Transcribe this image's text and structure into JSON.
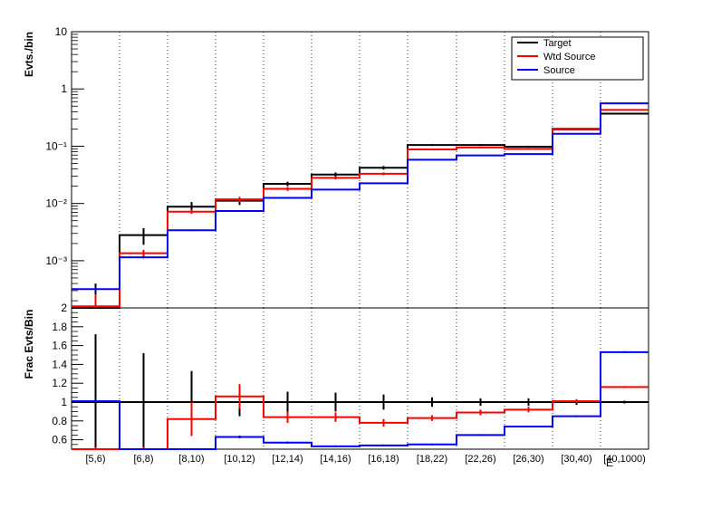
{
  "chart_data": [
    {
      "type": "step",
      "ylabel": "Evts./bin",
      "yscale": "log",
      "ylim": [
        0.00015,
        10
      ],
      "y_tick_labels": [
        "10",
        "1",
        "10⁻¹",
        "10⁻²",
        "10⁻³"
      ],
      "categories": [
        "[5,6)",
        "[6,8)",
        "[8,10)",
        "[10,12)",
        "[12,14)",
        "[14,16)",
        "[16,18)",
        "[18,22)",
        "[22,26)",
        "[26,30)",
        "[30,40)",
        "[40,1000)"
      ],
      "legend": {
        "position": "top-right",
        "entries": [
          "Target",
          "Wtd Source",
          "Source"
        ]
      },
      "series": [
        {
          "name": "Target",
          "color": "#000000",
          "values": [
            0.0001,
            0.0028,
            0.0088,
            0.0112,
            0.022,
            0.032,
            0.042,
            0.105,
            0.105,
            0.098,
            0.2,
            0.37
          ],
          "errors": [
            0.0003,
            0.0009,
            0.0018,
            0.0018,
            0.002,
            0.0028,
            0.003,
            0.004,
            0.004,
            0.004,
            0.005,
            0.006
          ]
        },
        {
          "name": "Wtd Source",
          "color": "#ff0000",
          "values": [
            0.00016,
            0.00135,
            0.0072,
            0.0118,
            0.018,
            0.028,
            0.033,
            0.088,
            0.095,
            0.09,
            0.195,
            0.43
          ],
          "errors": [
            0.0001,
            0.0002,
            0.0006,
            0.0012,
            0.0014,
            0.0018,
            0.0018,
            0.0025,
            0.0028,
            0.0028,
            0.004,
            0.005
          ]
        },
        {
          "name": "Source",
          "color": "#0000ff",
          "values": [
            0.00032,
            0.00115,
            0.0034,
            0.0074,
            0.0125,
            0.0175,
            0.0225,
            0.058,
            0.069,
            0.073,
            0.165,
            0.56
          ],
          "errors": [
            2e-05,
            5e-05,
            0.0001,
            0.0002,
            0.0003,
            0.0004,
            0.0004,
            0.0009,
            0.001,
            0.0011,
            0.002,
            0.003
          ]
        }
      ]
    },
    {
      "type": "step",
      "ylabel": "Frac Evts/Bin",
      "xlabel": "E",
      "ylim": [
        0.5,
        2
      ],
      "y_tick_labels": [
        "2",
        "1.8",
        "1.6",
        "1.4",
        "1.2",
        "1",
        "0.8",
        "0.6"
      ],
      "categories": [
        "[5,6)",
        "[6,8)",
        "[8,10)",
        "[10,12)",
        "[12,14)",
        "[14,16)",
        "[16,18)",
        "[18,22)",
        "[22,26)",
        "[26,30)",
        "[30,40)",
        "[40,1000)"
      ],
      "series": [
        {
          "name": "Target",
          "color": "#000000",
          "values": [
            1,
            1,
            1,
            1,
            1,
            1,
            1,
            1,
            1,
            1,
            1,
            1
          ],
          "errors": [
            0.72,
            0.52,
            0.33,
            0.15,
            0.11,
            0.1,
            0.08,
            0.05,
            0.04,
            0.04,
            0.03,
            0.015
          ]
        },
        {
          "name": "Wtd Source",
          "color": "#ff0000",
          "values": [
            0.5,
            0.5,
            0.82,
            1.06,
            0.84,
            0.84,
            0.78,
            0.83,
            0.89,
            0.92,
            1.01,
            1.16
          ],
          "errors": [
            0.02,
            0.02,
            0.18,
            0.13,
            0.06,
            0.05,
            0.04,
            0.03,
            0.03,
            0.03,
            0.02,
            0.01
          ]
        },
        {
          "name": "Source",
          "color": "#0000ff",
          "values": [
            1.01,
            0.5,
            0.5,
            0.63,
            0.57,
            0.53,
            0.54,
            0.55,
            0.65,
            0.74,
            0.85,
            1.53
          ],
          "errors": [
            0.01,
            0.01,
            0.01,
            0.015,
            0.012,
            0.01,
            0.01,
            0.01,
            0.01,
            0.01,
            0.01,
            0.01
          ]
        }
      ]
    }
  ]
}
